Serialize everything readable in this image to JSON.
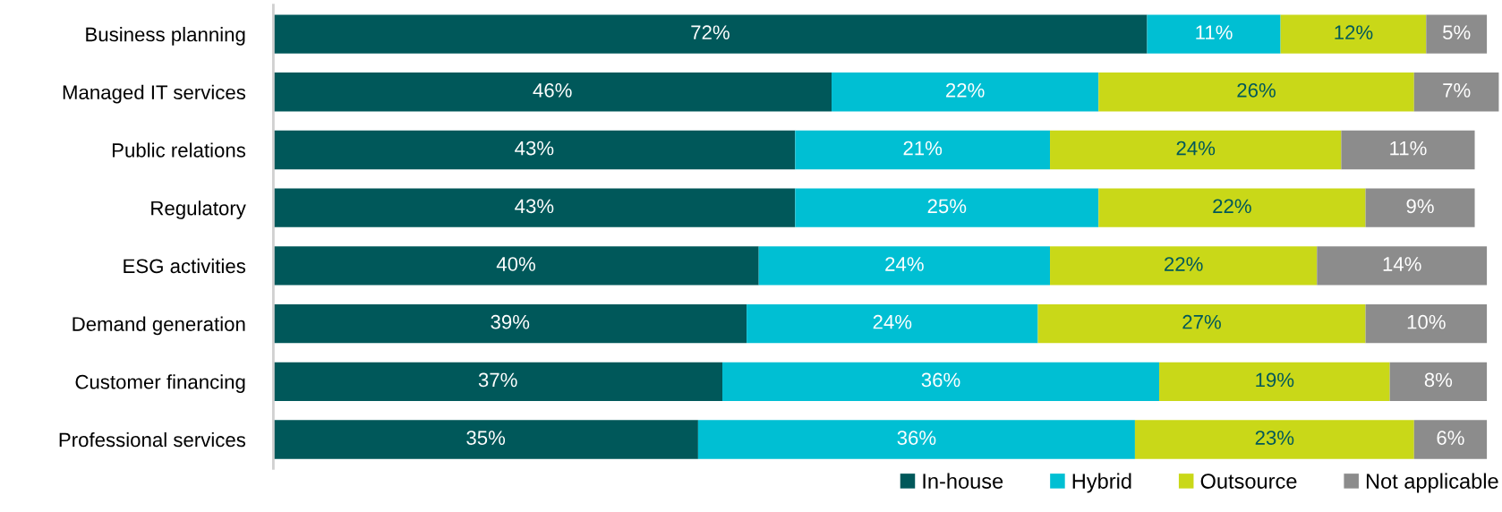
{
  "chart_data": {
    "type": "bar",
    "orientation": "horizontal",
    "stacked": true,
    "legend": "bottom right",
    "grid": false,
    "tick_labels": "y",
    "categories": [
      "Business planning",
      "Managed IT services",
      "Public relations",
      "Regulatory",
      "ESG activities",
      "Demand generation",
      "Customer financing",
      "Professional services"
    ],
    "series": [
      {
        "name": "In-house",
        "color": "#00585a",
        "values": [
          72,
          46,
          43,
          43,
          40,
          39,
          37,
          35
        ],
        "value_labels": [
          "72%",
          "46%",
          "43%",
          "43%",
          "40%",
          "39%",
          "37%",
          "35%"
        ]
      },
      {
        "name": "Hybrid",
        "color": "#00bfd3",
        "values": [
          11,
          22,
          21,
          25,
          24,
          24,
          36,
          36
        ],
        "value_labels": [
          "11%",
          "22%",
          "21%",
          "25%",
          "24%",
          "24%",
          "36%",
          "36%"
        ]
      },
      {
        "name": "Outsource",
        "color": "#c9d818",
        "values": [
          12,
          26,
          24,
          22,
          22,
          27,
          19,
          23
        ],
        "value_labels": [
          "12%",
          "26%",
          "24%",
          "22%",
          "22%",
          "27%",
          "19%",
          "23%"
        ]
      },
      {
        "name": "Not applicable",
        "color": "#8c8c8c",
        "values": [
          5,
          7,
          11,
          9,
          14,
          10,
          8,
          6
        ],
        "value_labels": [
          "5%",
          "7%",
          "11%",
          "9%",
          "14%",
          "10%",
          "8%",
          "6%"
        ]
      }
    ]
  }
}
